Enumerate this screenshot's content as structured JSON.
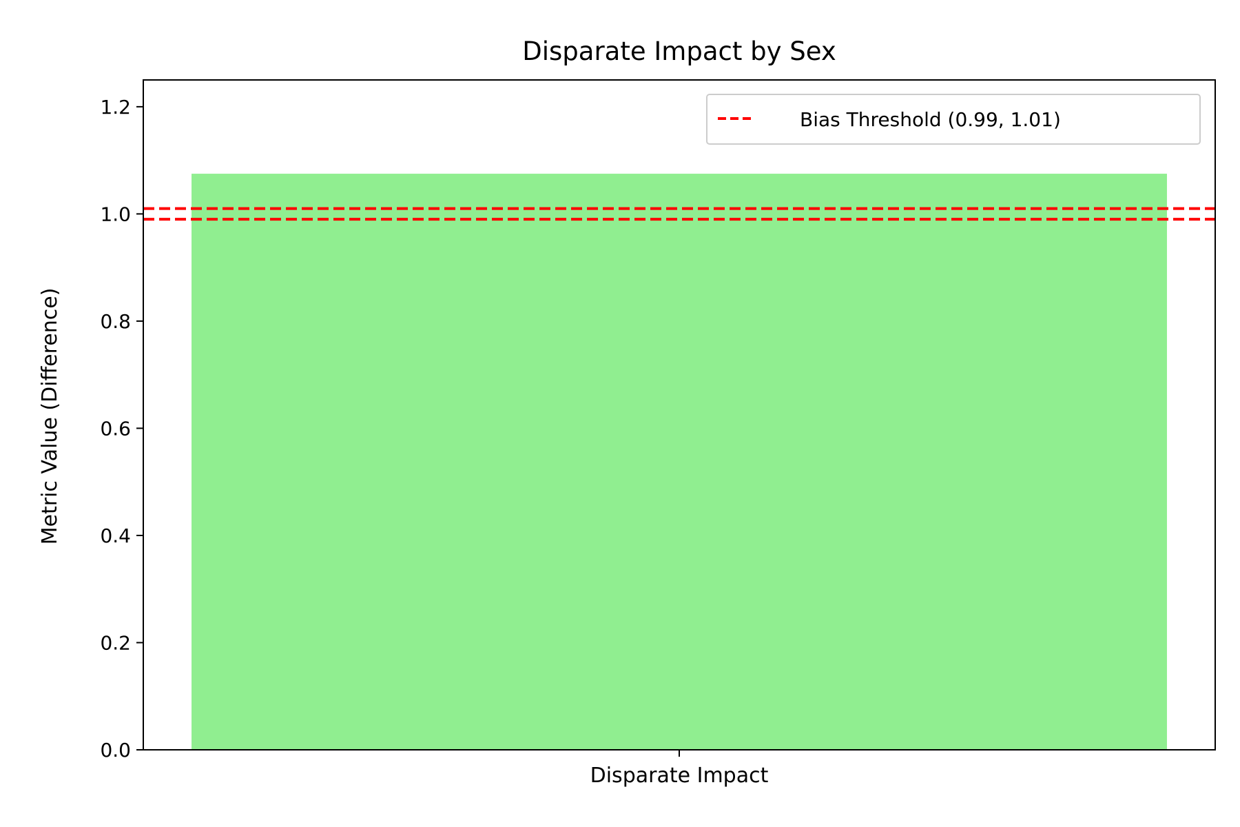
{
  "chart_data": {
    "type": "bar",
    "title": "Disparate Impact by Sex",
    "xlabel": "",
    "ylabel": "Metric Value (Difference)",
    "categories": [
      "Disparate Impact"
    ],
    "values": [
      1.075
    ],
    "ylim": [
      0,
      1.25
    ],
    "yticks": [
      0.0,
      0.2,
      0.4,
      0.6,
      0.8,
      1.0,
      1.2
    ],
    "ytick_labels": [
      "0.0",
      "0.2",
      "0.4",
      "0.6",
      "0.8",
      "1.0",
      "1.2"
    ],
    "bar_color": "#90ee90",
    "grid": false,
    "reference_lines": [
      {
        "y": 0.99,
        "style": "dashed",
        "color": "#ff0000"
      },
      {
        "y": 1.01,
        "style": "dashed",
        "color": "#ff0000"
      }
    ],
    "legend": {
      "placement": "top-right",
      "entries": [
        {
          "label": "Bias Threshold (0.99, 1.01)",
          "color": "#ff0000",
          "style": "dashed"
        }
      ]
    }
  }
}
